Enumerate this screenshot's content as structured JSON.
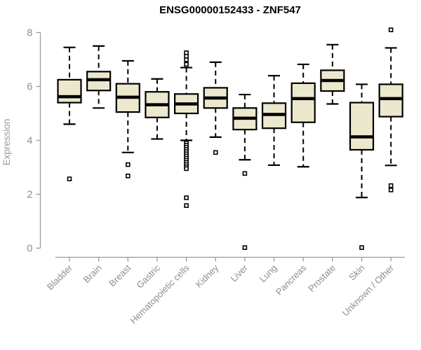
{
  "chart_data": {
    "type": "boxplot",
    "title": "ENSG00000152433 - ZNF547",
    "ylabel": "Expression",
    "xlabel": "",
    "ylim": [
      0,
      8
    ],
    "yticks": [
      "0",
      "2",
      "4",
      "6",
      "8"
    ],
    "grid": false,
    "legend": "none",
    "colors": {
      "box_fill": "#ece8ce",
      "box_border": "#000000",
      "median": "#000000",
      "axis": "#9a9a9a",
      "tick_label": "#8e8e8e",
      "background": "#ffffff",
      "title": "#000000"
    },
    "categories": [
      "Bladder",
      "Brain",
      "Breast",
      "Gastric",
      "Hematopoietic cells",
      "Kidney",
      "Liver",
      "Lung",
      "Pancreas",
      "Prostate",
      "Skin",
      "Unknown / Other"
    ],
    "series": [
      {
        "category": "Bladder",
        "low": 4.6,
        "q1": 5.4,
        "median": 5.62,
        "q3": 6.25,
        "high": 7.45,
        "outliers": [
          2.57
        ]
      },
      {
        "category": "Brain",
        "low": 5.2,
        "q1": 5.85,
        "median": 6.25,
        "q3": 6.55,
        "high": 7.5,
        "outliers": []
      },
      {
        "category": "Breast",
        "low": 3.55,
        "q1": 5.05,
        "median": 5.6,
        "q3": 6.1,
        "high": 6.95,
        "outliers": [
          3.1,
          2.68
        ]
      },
      {
        "category": "Gastric",
        "low": 4.05,
        "q1": 4.85,
        "median": 5.32,
        "q3": 5.8,
        "high": 6.28,
        "outliers": []
      },
      {
        "category": "Hematopoietic cells",
        "low": 4.0,
        "q1": 5.0,
        "median": 5.35,
        "q3": 5.72,
        "high": 6.7,
        "outliers": [
          7.25,
          7.12,
          6.99,
          6.82,
          3.9,
          3.82,
          3.74,
          3.66,
          3.58,
          3.5,
          3.42,
          3.34,
          3.26,
          3.18,
          3.1,
          3.02,
          2.95,
          1.87,
          1.58
        ]
      },
      {
        "category": "Kidney",
        "low": 4.12,
        "q1": 5.2,
        "median": 5.57,
        "q3": 5.95,
        "high": 6.9,
        "outliers": [
          3.55
        ]
      },
      {
        "category": "Liver",
        "low": 3.28,
        "q1": 4.4,
        "median": 4.82,
        "q3": 5.2,
        "high": 5.7,
        "outliers": [
          2.77,
          0.02
        ]
      },
      {
        "category": "Lung",
        "low": 3.08,
        "q1": 4.45,
        "median": 4.96,
        "q3": 5.38,
        "high": 6.4,
        "outliers": []
      },
      {
        "category": "Pancreas",
        "low": 3.02,
        "q1": 4.67,
        "median": 5.55,
        "q3": 6.12,
        "high": 6.82,
        "outliers": []
      },
      {
        "category": "Prostate",
        "low": 5.35,
        "q1": 5.83,
        "median": 6.22,
        "q3": 6.6,
        "high": 7.55,
        "outliers": []
      },
      {
        "category": "Skin",
        "low": 1.88,
        "q1": 3.65,
        "median": 4.13,
        "q3": 5.4,
        "high": 6.08,
        "outliers": [
          0.02
        ]
      },
      {
        "category": "Unknown / Other",
        "low": 3.07,
        "q1": 4.88,
        "median": 5.55,
        "q3": 6.08,
        "high": 7.43,
        "outliers": [
          8.1,
          2.32,
          2.16
        ]
      }
    ]
  }
}
